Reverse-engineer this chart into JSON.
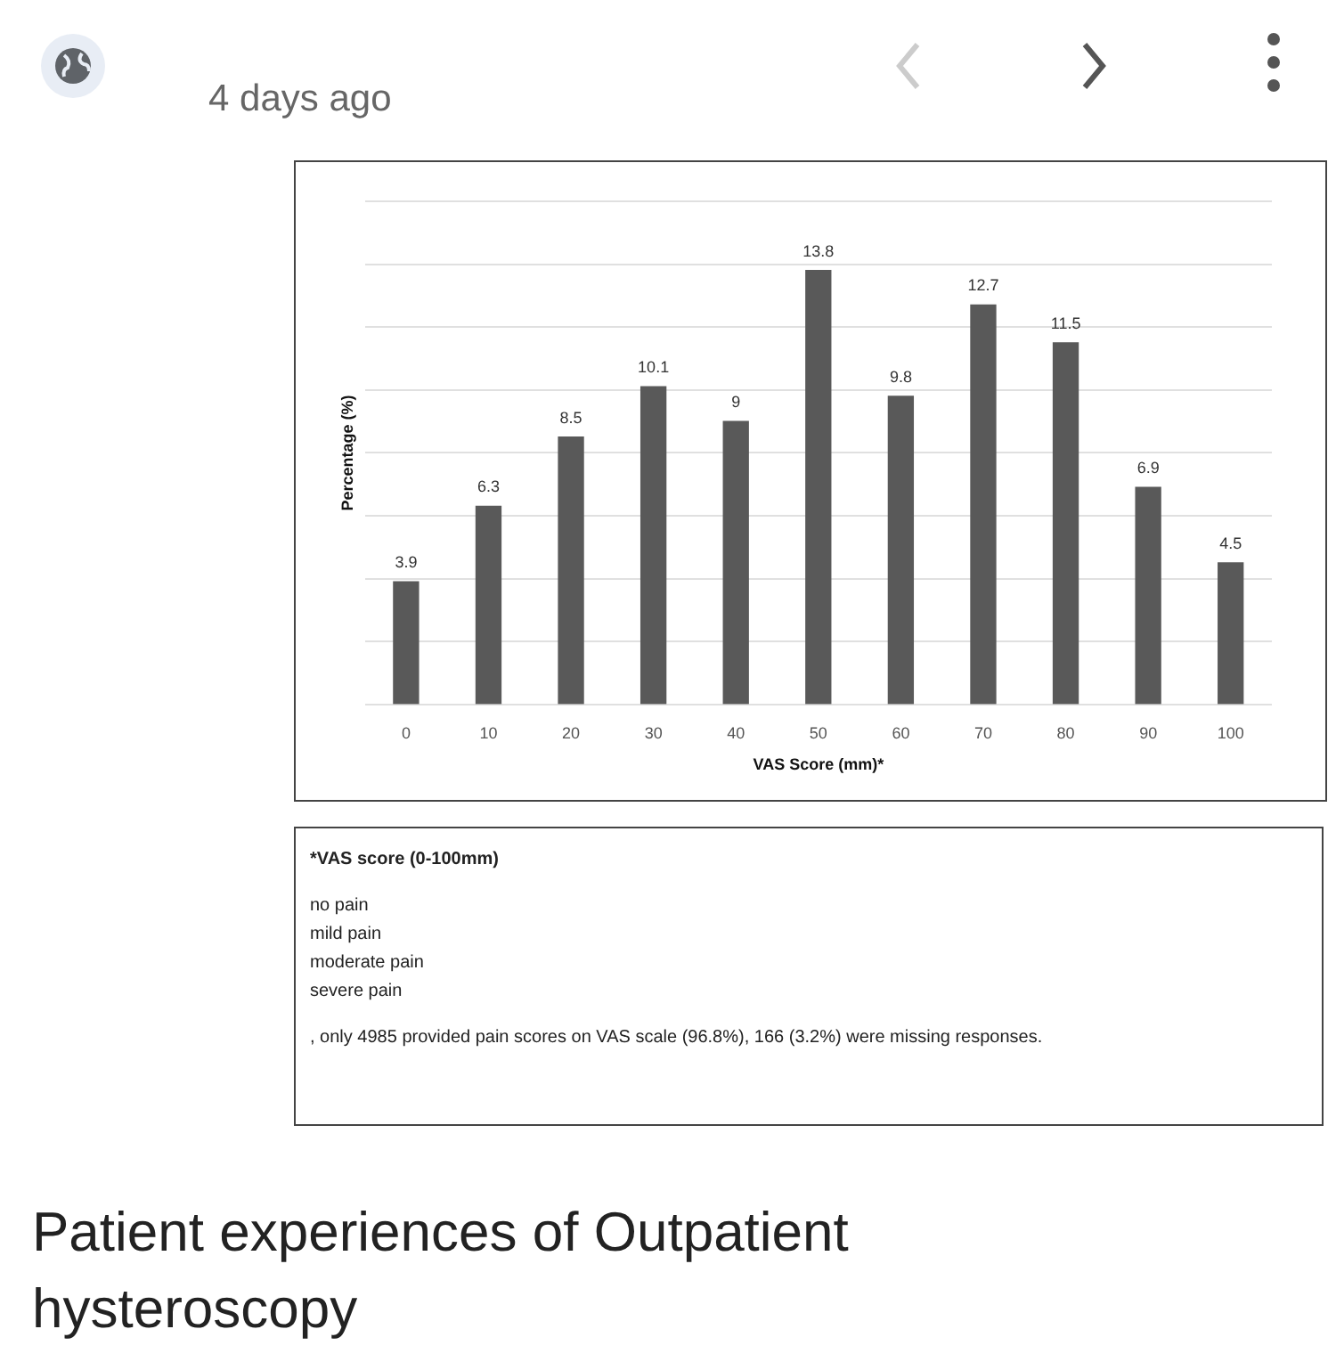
{
  "chart_data": {
    "type": "bar",
    "title": "Patient experiences of Outpatient hysteroscopy",
    "xlabel": "VAS Score (mm)*",
    "ylabel": "Percentage (%)",
    "categories": [
      "0",
      "10",
      "20",
      "30",
      "40",
      "50",
      "60",
      "70",
      "80",
      "90",
      "100"
    ],
    "values": [
      3.9,
      6.3,
      8.5,
      10.1,
      9,
      13.8,
      9.8,
      12.7,
      11.5,
      6.9,
      4.5
    ],
    "color": "#595959",
    "data_labels": true,
    "ylim": [
      0,
      16
    ],
    "yticks": [
      {
        "value": 0,
        "label": null
      },
      {
        "value": 2,
        "label": null
      },
      {
        "value": 4,
        "label": null
      },
      {
        "value": 6,
        "label": null
      },
      {
        "value": 8,
        "label": null
      },
      {
        "value": 10,
        "label": null
      },
      {
        "value": 12,
        "label": null
      },
      {
        "value": 14,
        "label": null
      },
      {
        "value": 16,
        "label": null
      }
    ],
    "grid": "y",
    "tick_labels": "x",
    "legend": false,
    "annotations": [
      "4 days ago",
      "*VAS score (0-100mm)",
      "no pain",
      "mild pain",
      "moderate pain",
      "severe pain",
      ", only 4985 provided pain scores on VAS scale (96.8%), 166 (3.2%) were missing responses."
    ]
  }
}
